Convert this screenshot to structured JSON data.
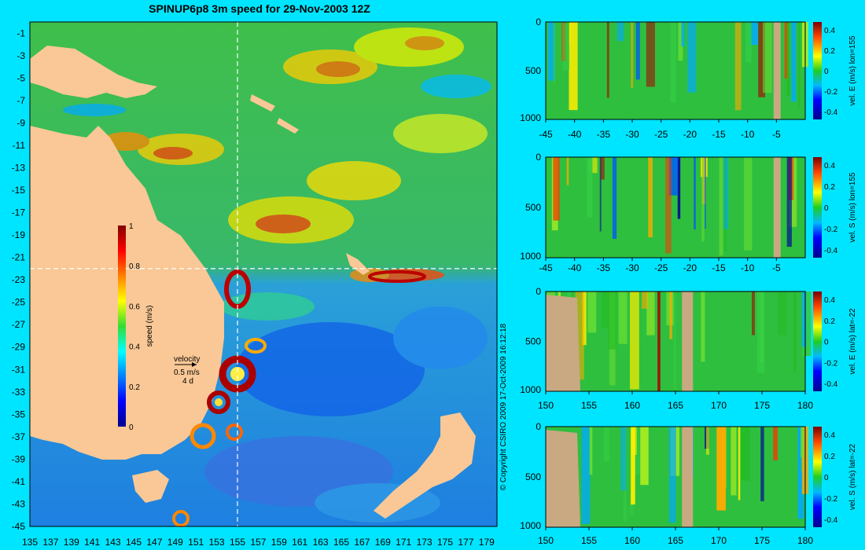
{
  "colors": {
    "background": "#00e5ff",
    "land": "#f9c896",
    "section_land": "#c8a982",
    "crosshair": "#ffffff"
  },
  "chart_data": [
    {
      "type": "heatmap",
      "title": "SPINUP6p8 3m speed for 29-Nov-2003 12Z",
      "xlabel": "",
      "ylabel": "",
      "x_ticks": [
        "135",
        "137",
        "139",
        "141",
        "143",
        "145",
        "147",
        "149",
        "151",
        "153",
        "155",
        "157",
        "159",
        "161",
        "163",
        "165",
        "167",
        "169",
        "171",
        "173",
        "175",
        "177",
        "179"
      ],
      "y_ticks": [
        "-1",
        "-3",
        "-5",
        "-7",
        "-9",
        "-11",
        "-13",
        "-15",
        "-17",
        "-19",
        "-21",
        "-23",
        "-25",
        "-27",
        "-29",
        "-31",
        "-33",
        "-35",
        "-37",
        "-39",
        "-41",
        "-43",
        "-45"
      ],
      "xlim": [
        135,
        180
      ],
      "ylim": [
        -45,
        0
      ],
      "crosshair": {
        "lon": 155,
        "lat": -22
      },
      "colorbar": {
        "label": "speed (m/s)",
        "range": [
          0,
          1
        ],
        "ticks": [
          "0",
          "0.2",
          "0.4",
          "0.6",
          "0.8",
          "1"
        ]
      },
      "velocity_key": {
        "title": "velocity",
        "speed": "0.5 m/s",
        "duration": "4 d"
      },
      "copyright": "© Copyright CSIRO 2009   17-Oct-2009 16:12:18"
    },
    {
      "type": "heatmap",
      "colorbar_label": "vel. E (m/s) lon=155",
      "x_ticks": [
        "-45",
        "-40",
        "-35",
        "-30",
        "-25",
        "-20",
        "-15",
        "-10",
        "-5"
      ],
      "xlim": [
        -45,
        0
      ],
      "y_ticks": [
        "0",
        "500",
        "1000"
      ],
      "ylim": [
        1000,
        0
      ],
      "colorbar_ticks": [
        "0.4",
        "0.2",
        "0",
        "-0.2",
        "-0.4"
      ]
    },
    {
      "type": "heatmap",
      "colorbar_label": "vel. S (m/s) lon=155",
      "x_ticks": [
        "-45",
        "-40",
        "-35",
        "-30",
        "-25",
        "-20",
        "-15",
        "-10",
        "-5"
      ],
      "xlim": [
        -45,
        0
      ],
      "y_ticks": [
        "0",
        "500",
        "1000"
      ],
      "ylim": [
        1000,
        0
      ],
      "colorbar_ticks": [
        "0.4",
        "0.2",
        "0",
        "-0.2",
        "-0.4"
      ]
    },
    {
      "type": "heatmap",
      "colorbar_label": "vel. E (m/s) lat=-22",
      "x_ticks": [
        "150",
        "155",
        "160",
        "165",
        "170",
        "175",
        "180"
      ],
      "xlim": [
        150,
        180
      ],
      "y_ticks": [
        "0",
        "500",
        "1000"
      ],
      "ylim": [
        1000,
        0
      ],
      "colorbar_ticks": [
        "0.4",
        "0.2",
        "0",
        "-0.2",
        "-0.4"
      ]
    },
    {
      "type": "heatmap",
      "colorbar_label": "vel. S (m/s) lat=-22",
      "x_ticks": [
        "150",
        "155",
        "160",
        "165",
        "170",
        "175",
        "180"
      ],
      "xlim": [
        150,
        180
      ],
      "y_ticks": [
        "0",
        "500",
        "1000"
      ],
      "ylim": [
        1000,
        0
      ],
      "colorbar_ticks": [
        "0.4",
        "0.2",
        "0",
        "-0.2",
        "-0.4"
      ]
    }
  ]
}
